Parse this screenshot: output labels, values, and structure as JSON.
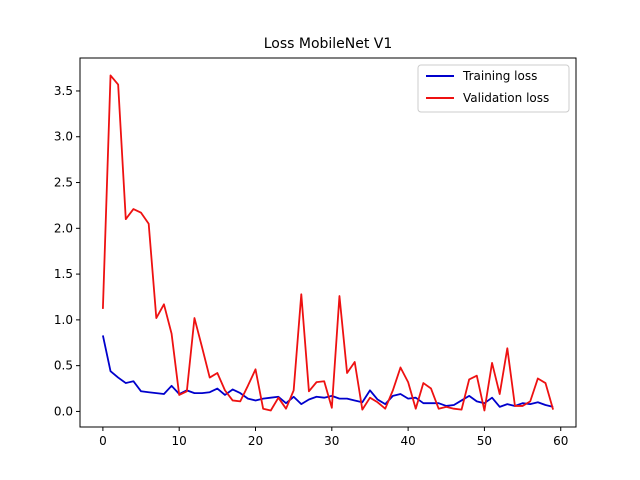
{
  "chart_data": {
    "type": "line",
    "title": "Loss MobileNet V1",
    "xlabel": "",
    "ylabel": "",
    "xlim": [
      -3,
      62
    ],
    "ylim": [
      -0.17,
      3.86
    ],
    "xticks": [
      0,
      10,
      20,
      30,
      40,
      50,
      60
    ],
    "yticks": [
      0.0,
      0.5,
      1.0,
      1.5,
      2.0,
      2.5,
      3.0,
      3.5
    ],
    "grid": false,
    "legend_position": "top-right",
    "x": [
      0,
      1,
      2,
      3,
      4,
      5,
      6,
      7,
      8,
      9,
      10,
      11,
      12,
      13,
      14,
      15,
      16,
      17,
      18,
      19,
      20,
      21,
      22,
      23,
      24,
      25,
      26,
      27,
      28,
      29,
      30,
      31,
      32,
      33,
      34,
      35,
      36,
      37,
      38,
      39,
      40,
      41,
      42,
      43,
      44,
      45,
      46,
      47,
      48,
      49,
      50,
      51,
      52,
      53,
      54,
      55,
      56,
      57,
      58,
      59
    ],
    "series": [
      {
        "name": "Training loss",
        "color": "#0000cc",
        "values": [
          0.83,
          0.44,
          0.37,
          0.31,
          0.33,
          0.22,
          0.21,
          0.2,
          0.19,
          0.28,
          0.19,
          0.23,
          0.2,
          0.2,
          0.21,
          0.25,
          0.18,
          0.24,
          0.2,
          0.14,
          0.12,
          0.14,
          0.15,
          0.16,
          0.09,
          0.16,
          0.08,
          0.13,
          0.16,
          0.15,
          0.17,
          0.14,
          0.14,
          0.12,
          0.1,
          0.23,
          0.13,
          0.08,
          0.17,
          0.19,
          0.14,
          0.15,
          0.09,
          0.09,
          0.09,
          0.06,
          0.07,
          0.12,
          0.17,
          0.11,
          0.09,
          0.15,
          0.05,
          0.08,
          0.06,
          0.09,
          0.08,
          0.1,
          0.07,
          0.05
        ]
      },
      {
        "name": "Validation loss",
        "color": "#ee1111",
        "values": [
          1.12,
          3.67,
          3.57,
          2.1,
          2.21,
          2.17,
          2.05,
          1.02,
          1.17,
          0.85,
          0.18,
          0.22,
          1.02,
          0.7,
          0.37,
          0.42,
          0.23,
          0.12,
          0.11,
          0.28,
          0.46,
          0.03,
          0.01,
          0.15,
          0.03,
          0.23,
          1.28,
          0.22,
          0.32,
          0.33,
          0.04,
          1.26,
          0.42,
          0.54,
          0.02,
          0.15,
          0.1,
          0.03,
          0.23,
          0.48,
          0.32,
          0.03,
          0.31,
          0.25,
          0.03,
          0.05,
          0.03,
          0.02,
          0.35,
          0.39,
          0.01,
          0.53,
          0.19,
          0.69,
          0.06,
          0.06,
          0.11,
          0.36,
          0.31,
          0.02
        ]
      }
    ]
  }
}
